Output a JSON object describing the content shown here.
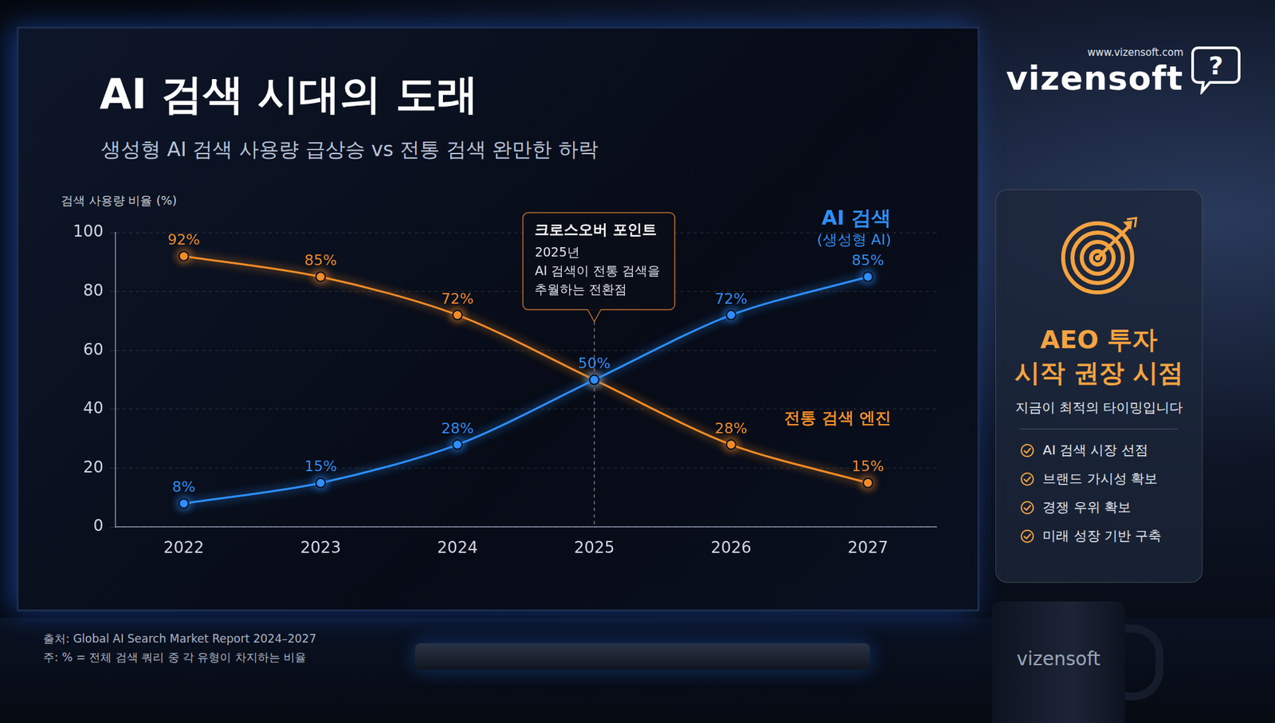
{
  "chart_data": {
    "type": "line",
    "title": "AI 검색 시대의 도래",
    "subtitle": "생성형 AI 검색 사용량 급상승 vs 전통 검색 완만한 하락",
    "y_label": "검색 사용량 비율 (%)",
    "categories": [
      "2022",
      "2023",
      "2024",
      "2025",
      "2026",
      "2027"
    ],
    "series": [
      {
        "name": "AI 검색",
        "label_note": "(생성형 AI)",
        "color": "#2e8fff",
        "marker": "circle",
        "line_style": "solid",
        "values": [
          8,
          15,
          28,
          50,
          72,
          85
        ],
        "value_labels": [
          "8%",
          "15%",
          "28%",
          "50%",
          "72%",
          "85%"
        ]
      },
      {
        "name": "전통 검색 엔진",
        "color": "#f28c28",
        "marker": "circle",
        "line_style": "solid",
        "values": [
          92,
          85,
          72,
          50,
          28,
          15
        ],
        "value_labels": [
          "92%",
          "85%",
          "72%",
          "50%",
          "28%",
          "15%"
        ]
      }
    ],
    "ylim": [
      0,
      100
    ],
    "yticks": [
      0,
      20,
      40,
      60,
      80,
      100
    ],
    "grid": true,
    "data_labels": true,
    "annotation": {
      "x": "2025",
      "title": "크로스오버 포인트",
      "lines": [
        "2025년",
        "AI 검색이 전통 검색을",
        "추월하는 전환점"
      ]
    },
    "source": "출처: Global AI Search Market Report 2024–2027",
    "note": "주: % = 전체 검색 쿼리 중 각 유형이 차지하는 비율"
  },
  "side_panel": {
    "title_lines": [
      "AEO 투자",
      "시작 권장 시점"
    ],
    "subtitle": "지금이 최적의 타이밍입니다",
    "items": [
      "AI 검색 시장 선점",
      "브랜드 가시성 확보",
      "경쟁 우위 확보",
      "미래 성장 기반 구축"
    ]
  },
  "brand": {
    "name": "vizensoft",
    "url": "www.vizensoft.com",
    "icon_text": "?"
  }
}
